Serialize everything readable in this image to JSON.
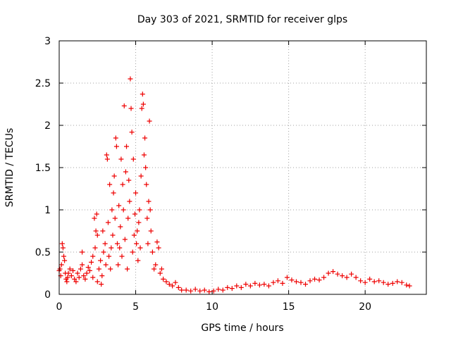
{
  "chart_data": {
    "type": "scatter",
    "title": "Day 303 of 2021, SRMTID for receiver glps",
    "xlabel": "GPS time / hours",
    "ylabel": "SRMTID / TECUs",
    "xlim": [
      0,
      24
    ],
    "ylim": [
      0,
      3
    ],
    "x_ticks": [
      0,
      5,
      10,
      15,
      20
    ],
    "x_tick_labels": [
      "0",
      "5",
      "10",
      "15",
      "20"
    ],
    "y_ticks": [
      0,
      0.5,
      1,
      1.5,
      2,
      2.5,
      3
    ],
    "y_tick_labels": [
      "0",
      "0.5",
      "1",
      "1.5",
      "2",
      "2.5",
      "3"
    ],
    "grid": true,
    "marker": "plus",
    "series_color": "#ee0000",
    "series": [
      {
        "name": "SRMTID",
        "points": [
          [
            0.0,
            0.28
          ],
          [
            0.05,
            0.3
          ],
          [
            0.1,
            0.22
          ],
          [
            0.15,
            0.35
          ],
          [
            0.2,
            0.6
          ],
          [
            0.25,
            0.55
          ],
          [
            0.3,
            0.45
          ],
          [
            0.35,
            0.4
          ],
          [
            0.4,
            0.25
          ],
          [
            0.45,
            0.18
          ],
          [
            0.5,
            0.15
          ],
          [
            0.55,
            0.2
          ],
          [
            0.6,
            0.25
          ],
          [
            0.7,
            0.3
          ],
          [
            0.8,
            0.22
          ],
          [
            0.9,
            0.28
          ],
          [
            1.0,
            0.18
          ],
          [
            1.1,
            0.15
          ],
          [
            1.2,
            0.25
          ],
          [
            1.3,
            0.2
          ],
          [
            1.4,
            0.3
          ],
          [
            1.5,
            0.35
          ],
          [
            1.5,
            0.5
          ],
          [
            1.6,
            0.22
          ],
          [
            1.7,
            0.18
          ],
          [
            1.8,
            0.25
          ],
          [
            1.9,
            0.32
          ],
          [
            2.0,
            0.28
          ],
          [
            2.1,
            0.38
          ],
          [
            2.2,
            0.45
          ],
          [
            2.2,
            0.2
          ],
          [
            2.3,
            0.9
          ],
          [
            2.35,
            0.55
          ],
          [
            2.4,
            0.75
          ],
          [
            2.45,
            0.95
          ],
          [
            2.5,
            0.7
          ],
          [
            2.5,
            0.15
          ],
          [
            2.6,
            0.3
          ],
          [
            2.7,
            0.4
          ],
          [
            2.75,
            0.12
          ],
          [
            2.8,
            0.22
          ],
          [
            2.85,
            0.75
          ],
          [
            2.9,
            0.5
          ],
          [
            3.0,
            0.6
          ],
          [
            3.05,
            0.35
          ],
          [
            3.1,
            1.65
          ],
          [
            3.15,
            1.6
          ],
          [
            3.2,
            0.85
          ],
          [
            3.25,
            0.45
          ],
          [
            3.3,
            1.3
          ],
          [
            3.35,
            0.3
          ],
          [
            3.4,
            0.55
          ],
          [
            3.45,
            1.0
          ],
          [
            3.5,
            0.7
          ],
          [
            3.55,
            1.2
          ],
          [
            3.6,
            1.4
          ],
          [
            3.65,
            0.9
          ],
          [
            3.7,
            1.85
          ],
          [
            3.75,
            1.75
          ],
          [
            3.8,
            0.6
          ],
          [
            3.85,
            0.35
          ],
          [
            3.9,
            1.05
          ],
          [
            3.95,
            0.55
          ],
          [
            4.0,
            0.8
          ],
          [
            4.05,
            1.6
          ],
          [
            4.1,
            0.45
          ],
          [
            4.15,
            1.3
          ],
          [
            4.2,
            1.0
          ],
          [
            4.25,
            2.23
          ],
          [
            4.3,
            0.65
          ],
          [
            4.35,
            1.45
          ],
          [
            4.4,
            1.75
          ],
          [
            4.45,
            0.3
          ],
          [
            4.5,
            0.9
          ],
          [
            4.55,
            1.35
          ],
          [
            4.6,
            1.1
          ],
          [
            4.65,
            2.55
          ],
          [
            4.7,
            2.2
          ],
          [
            4.75,
            1.92
          ],
          [
            4.8,
            0.5
          ],
          [
            4.85,
            1.6
          ],
          [
            4.9,
            0.7
          ],
          [
            4.95,
            0.95
          ],
          [
            5.0,
            1.2
          ],
          [
            5.05,
            0.6
          ],
          [
            5.1,
            0.75
          ],
          [
            5.15,
            0.4
          ],
          [
            5.2,
            0.85
          ],
          [
            5.25,
            1.0
          ],
          [
            5.3,
            0.55
          ],
          [
            5.35,
            1.4
          ],
          [
            5.4,
            2.2
          ],
          [
            5.45,
            2.37
          ],
          [
            5.5,
            2.25
          ],
          [
            5.55,
            1.65
          ],
          [
            5.6,
            1.85
          ],
          [
            5.65,
            1.5
          ],
          [
            5.7,
            1.3
          ],
          [
            5.75,
            0.9
          ],
          [
            5.8,
            0.6
          ],
          [
            5.85,
            1.1
          ],
          [
            5.9,
            2.05
          ],
          [
            5.95,
            1.0
          ],
          [
            6.0,
            0.75
          ],
          [
            6.1,
            0.5
          ],
          [
            6.2,
            0.3
          ],
          [
            6.3,
            0.35
          ],
          [
            6.4,
            0.62
          ],
          [
            6.5,
            0.55
          ],
          [
            6.6,
            0.25
          ],
          [
            6.7,
            0.3
          ],
          [
            6.8,
            0.18
          ],
          [
            7.0,
            0.15
          ],
          [
            7.2,
            0.12
          ],
          [
            7.4,
            0.1
          ],
          [
            7.6,
            0.14
          ],
          [
            7.8,
            0.08
          ],
          [
            8.0,
            0.05
          ],
          [
            8.3,
            0.05
          ],
          [
            8.6,
            0.04
          ],
          [
            8.9,
            0.06
          ],
          [
            9.2,
            0.04
          ],
          [
            9.5,
            0.05
          ],
          [
            9.8,
            0.03
          ],
          [
            10.1,
            0.04
          ],
          [
            10.4,
            0.06
          ],
          [
            10.7,
            0.05
          ],
          [
            11.0,
            0.08
          ],
          [
            11.3,
            0.07
          ],
          [
            11.6,
            0.1
          ],
          [
            11.9,
            0.08
          ],
          [
            12.2,
            0.12
          ],
          [
            12.5,
            0.1
          ],
          [
            12.8,
            0.13
          ],
          [
            13.1,
            0.11
          ],
          [
            13.4,
            0.12
          ],
          [
            13.7,
            0.1
          ],
          [
            14.0,
            0.14
          ],
          [
            14.3,
            0.16
          ],
          [
            14.6,
            0.13
          ],
          [
            14.9,
            0.2
          ],
          [
            15.2,
            0.17
          ],
          [
            15.5,
            0.15
          ],
          [
            15.8,
            0.14
          ],
          [
            16.1,
            0.12
          ],
          [
            16.4,
            0.16
          ],
          [
            16.7,
            0.18
          ],
          [
            17.0,
            0.17
          ],
          [
            17.3,
            0.2
          ],
          [
            17.6,
            0.25
          ],
          [
            17.9,
            0.27
          ],
          [
            18.2,
            0.24
          ],
          [
            18.5,
            0.22
          ],
          [
            18.8,
            0.2
          ],
          [
            19.1,
            0.24
          ],
          [
            19.4,
            0.2
          ],
          [
            19.7,
            0.16
          ],
          [
            20.0,
            0.14
          ],
          [
            20.3,
            0.18
          ],
          [
            20.6,
            0.15
          ],
          [
            20.9,
            0.16
          ],
          [
            21.2,
            0.14
          ],
          [
            21.5,
            0.12
          ],
          [
            21.8,
            0.13
          ],
          [
            22.1,
            0.15
          ],
          [
            22.4,
            0.14
          ],
          [
            22.7,
            0.11
          ],
          [
            22.9,
            0.1
          ]
        ]
      }
    ]
  }
}
